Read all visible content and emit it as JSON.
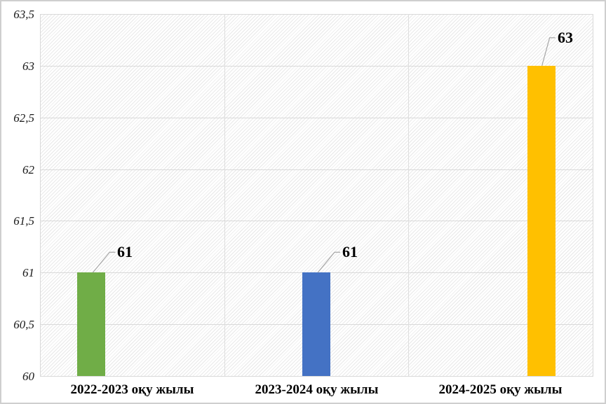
{
  "chart_data": {
    "type": "bar",
    "title": "",
    "categories": [
      "2022-2023 оқу жылы",
      "2023-2024 оқу жылы",
      "2024-2025 оқу жылы"
    ],
    "values": [
      61,
      61,
      63
    ],
    "data_labels": [
      "61",
      "61",
      "63"
    ],
    "bar_colors": [
      "#70AD47",
      "#4472C4",
      "#FFC000"
    ],
    "bar_slots": [
      0,
      1,
      2
    ],
    "xlabel": "",
    "ylabel": "",
    "y_axis": {
      "min": 60,
      "max": 63.5,
      "step": 0.5,
      "tick_labels": [
        "60",
        "60,5",
        "61",
        "61,5",
        "62",
        "62,5",
        "63",
        "63,5"
      ],
      "decimal_separator": ","
    },
    "grid": true,
    "legend": false,
    "plot_background": "diagonal-hatch"
  },
  "styles": {
    "background": "#ffffff",
    "outer_border_color": "#cfcfcf",
    "plot_border_color": "#d9d9d9",
    "gridline_color": "#d9d9d9",
    "hatch_color": "#e9e9e9",
    "leader_line_color": "#a6a6a6",
    "text_color": "#000000"
  }
}
